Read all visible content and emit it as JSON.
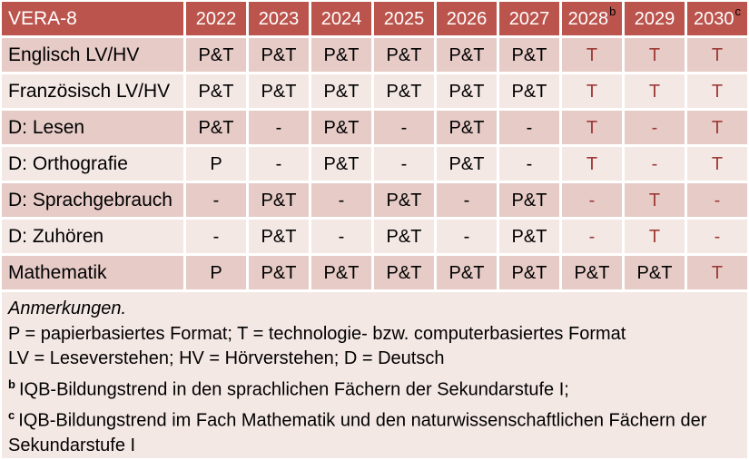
{
  "colors": {
    "header_bg": "#bb544d",
    "header_text": "#ffffff",
    "header_superscript": "#000000",
    "row_band_dark": "#e6cbc7",
    "row_band_light": "#f4e8e5",
    "notes_bg": "#f4e8e5",
    "text": "#000000",
    "red_text": "#9d3a36",
    "grid_gap": "#ffffff"
  },
  "table": {
    "title": "VERA-8",
    "columns": [
      {
        "label": "2022",
        "sup": ""
      },
      {
        "label": "2023",
        "sup": ""
      },
      {
        "label": "2024",
        "sup": ""
      },
      {
        "label": "2025",
        "sup": ""
      },
      {
        "label": "2026",
        "sup": ""
      },
      {
        "label": "2027",
        "sup": ""
      },
      {
        "label": "2028",
        "sup": "b"
      },
      {
        "label": "2029",
        "sup": ""
      },
      {
        "label": "2030",
        "sup": "c"
      }
    ],
    "rows": [
      {
        "label": "Englisch LV/HV",
        "cells": [
          {
            "text": "P&T",
            "red": false
          },
          {
            "text": "P&T",
            "red": false
          },
          {
            "text": "P&T",
            "red": false
          },
          {
            "text": "P&T",
            "red": false
          },
          {
            "text": "P&T",
            "red": false
          },
          {
            "text": "P&T",
            "red": false
          },
          {
            "text": "T",
            "red": true
          },
          {
            "text": "T",
            "red": true
          },
          {
            "text": "T",
            "red": true
          }
        ]
      },
      {
        "label": "Französisch LV/HV",
        "cells": [
          {
            "text": "P&T",
            "red": false
          },
          {
            "text": "P&T",
            "red": false
          },
          {
            "text": "P&T",
            "red": false
          },
          {
            "text": "P&T",
            "red": false
          },
          {
            "text": "P&T",
            "red": false
          },
          {
            "text": "P&T",
            "red": false
          },
          {
            "text": "T",
            "red": true
          },
          {
            "text": "T",
            "red": true
          },
          {
            "text": "T",
            "red": true
          }
        ]
      },
      {
        "label": "D: Lesen",
        "cells": [
          {
            "text": "P&T",
            "red": false
          },
          {
            "text": "-",
            "red": false
          },
          {
            "text": "P&T",
            "red": false
          },
          {
            "text": "-",
            "red": false
          },
          {
            "text": "P&T",
            "red": false
          },
          {
            "text": "-",
            "red": false
          },
          {
            "text": "T",
            "red": true
          },
          {
            "text": "-",
            "red": true
          },
          {
            "text": "T",
            "red": true
          }
        ]
      },
      {
        "label": "D: Orthografie",
        "cells": [
          {
            "text": "P",
            "red": false
          },
          {
            "text": "-",
            "red": false
          },
          {
            "text": "P&T",
            "red": false
          },
          {
            "text": "-",
            "red": false
          },
          {
            "text": "P&T",
            "red": false
          },
          {
            "text": "-",
            "red": false
          },
          {
            "text": "T",
            "red": true
          },
          {
            "text": "-",
            "red": true
          },
          {
            "text": "T",
            "red": true
          }
        ]
      },
      {
        "label": "D: Sprachgebrauch",
        "cells": [
          {
            "text": "-",
            "red": false
          },
          {
            "text": "P&T",
            "red": false
          },
          {
            "text": "-",
            "red": false
          },
          {
            "text": "P&T",
            "red": false
          },
          {
            "text": "-",
            "red": false
          },
          {
            "text": "P&T",
            "red": false
          },
          {
            "text": "-",
            "red": true
          },
          {
            "text": "T",
            "red": true
          },
          {
            "text": "-",
            "red": true
          }
        ]
      },
      {
        "label": "D: Zuhören",
        "cells": [
          {
            "text": "-",
            "red": false
          },
          {
            "text": "P&T",
            "red": false
          },
          {
            "text": "-",
            "red": false
          },
          {
            "text": "P&T",
            "red": false
          },
          {
            "text": "-",
            "red": false
          },
          {
            "text": "P&T",
            "red": false
          },
          {
            "text": "-",
            "red": true
          },
          {
            "text": "T",
            "red": true
          },
          {
            "text": "-",
            "red": true
          }
        ]
      },
      {
        "label": "Mathematik",
        "cells": [
          {
            "text": "P",
            "red": false
          },
          {
            "text": "P&T",
            "red": false
          },
          {
            "text": "P&T",
            "red": false
          },
          {
            "text": "P&T",
            "red": false
          },
          {
            "text": "P&T",
            "red": false
          },
          {
            "text": "P&T",
            "red": false
          },
          {
            "text": "P&T",
            "red": false
          },
          {
            "text": "P&T",
            "red": false
          },
          {
            "text": "T",
            "red": true
          }
        ]
      }
    ]
  },
  "notes": {
    "heading": "Anmerkungen.",
    "line_formats": "P = papierbasiertes Format; T = technologie- bzw. computerbasiertes Format",
    "line_abbreviations": "LV = Leseverstehen; HV = Hörverstehen; D = Deutsch",
    "footnote_b": {
      "sup": "b",
      "text": "IQB-Bildungstrend in den sprachlichen Fächern der Sekundarstufe I;"
    },
    "footnote_c": {
      "sup": "c",
      "text": "IQB-Bildungstrend im Fach Mathematik und den naturwissenschaftlichen Fächern der Sekundarstufe I"
    }
  }
}
